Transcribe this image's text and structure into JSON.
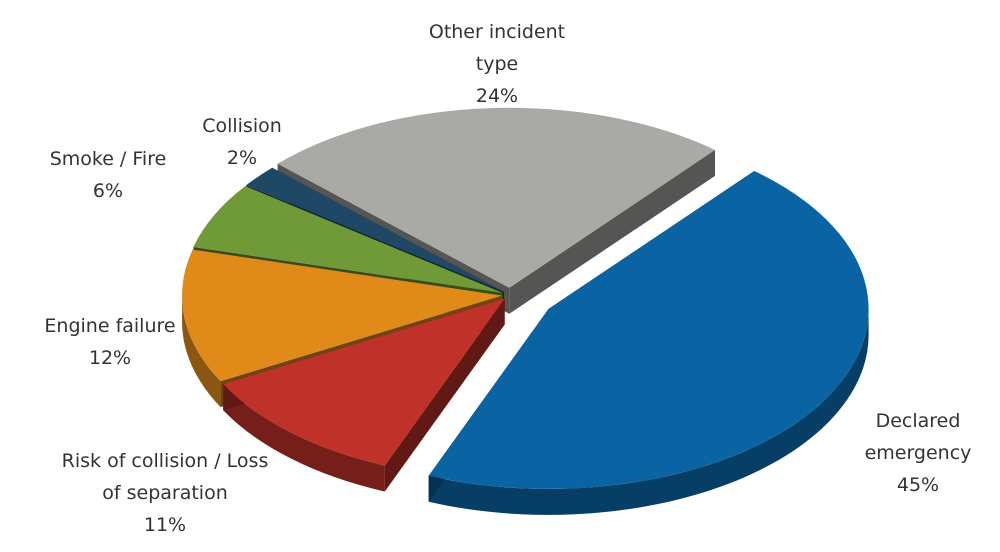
{
  "chart_data": {
    "type": "pie",
    "categories": [
      "Declared emergency",
      "Risk of collision / Loss of separation",
      "Engine failure",
      "Smoke / Fire",
      "Collision",
      "Other incident type"
    ],
    "values": [
      45,
      11,
      12,
      6,
      2,
      24
    ],
    "value_labels": [
      "45%",
      "11%",
      "12%",
      "6%",
      "2%",
      "24%"
    ],
    "colors": [
      "#0a64a4",
      "#bf3129",
      "#e08a19",
      "#6f9a37",
      "#1f4766",
      "#a9aaa6"
    ]
  }
}
